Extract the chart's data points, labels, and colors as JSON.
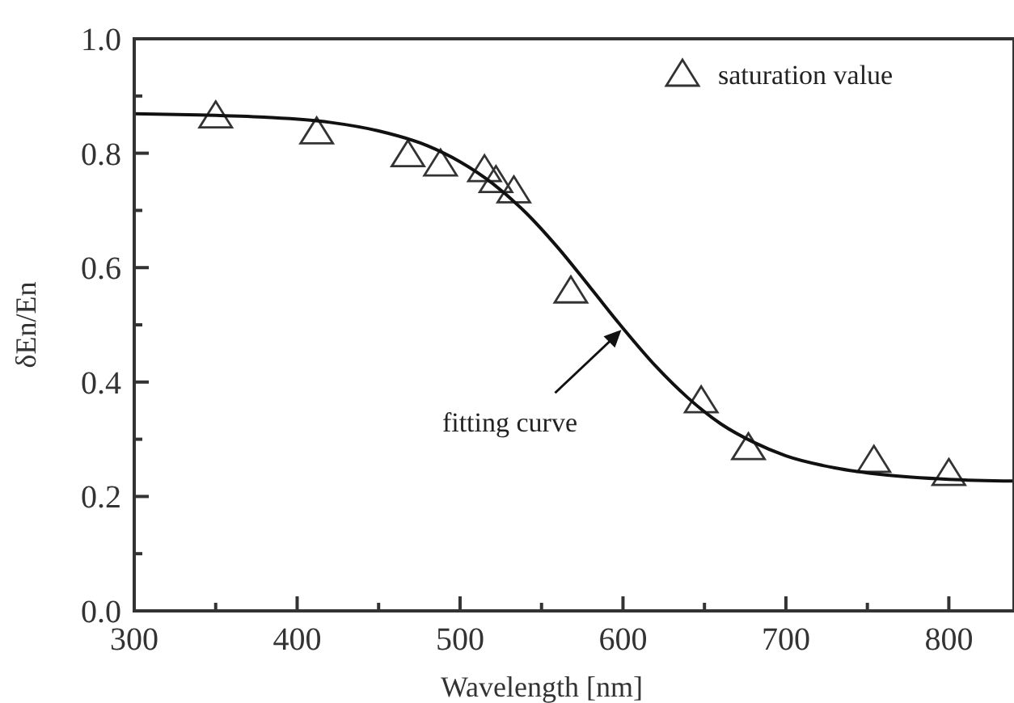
{
  "chart_data": {
    "type": "scatter",
    "xlabel": "Wavelength [nm]",
    "ylabel": "δEn/En",
    "xlim": [
      300,
      840
    ],
    "ylim": [
      0,
      1
    ],
    "xticks": [
      300,
      {
        "value": 350,
        "label": null
      },
      400,
      {
        "value": 450,
        "label": null
      },
      500,
      {
        "value": 550,
        "label": null
      },
      600,
      {
        "value": 650,
        "label": null
      },
      700,
      {
        "value": 750,
        "label": null
      },
      800
    ],
    "yticks": [
      {
        "value": 0,
        "label": "0.0"
      },
      {
        "value": 0.1,
        "label": null
      },
      0.2,
      {
        "value": 0.3,
        "label": null
      },
      0.4,
      {
        "value": 0.5,
        "label": null
      },
      0.6,
      {
        "value": 0.7,
        "label": null
      },
      0.8,
      {
        "value": 0.9,
        "label": null
      },
      {
        "value": 1,
        "label": "1.0"
      }
    ],
    "grid": false,
    "legend": "top right",
    "series": [
      {
        "name": "saturation value",
        "marker": "triangle",
        "color": "#333333",
        "x": [
          350,
          412,
          468,
          488,
          515,
          522,
          533,
          568,
          648,
          677,
          754,
          800
        ],
        "values": [
          0.865,
          0.837,
          0.797,
          0.781,
          0.771,
          0.752,
          0.734,
          0.559,
          0.367,
          0.285,
          0.263,
          0.24
        ]
      },
      {
        "type": "line",
        "marker": "none",
        "line_style": "solid",
        "color": "#111111",
        "x": [
          300,
          340,
          380,
          420,
          450,
          480,
          500,
          520,
          540,
          560,
          580,
          600,
          620,
          640,
          660,
          680,
          700,
          730,
          760,
          800,
          840
        ],
        "values": [
          0.869,
          0.867,
          0.863,
          0.854,
          0.839,
          0.813,
          0.785,
          0.747,
          0.697,
          0.635,
          0.565,
          0.494,
          0.428,
          0.372,
          0.327,
          0.295,
          0.271,
          0.25,
          0.238,
          0.23,
          0.227
        ]
      }
    ],
    "annotations": [
      {
        "text": "fitting curve",
        "x": 600,
        "y": 0.494
      }
    ]
  }
}
